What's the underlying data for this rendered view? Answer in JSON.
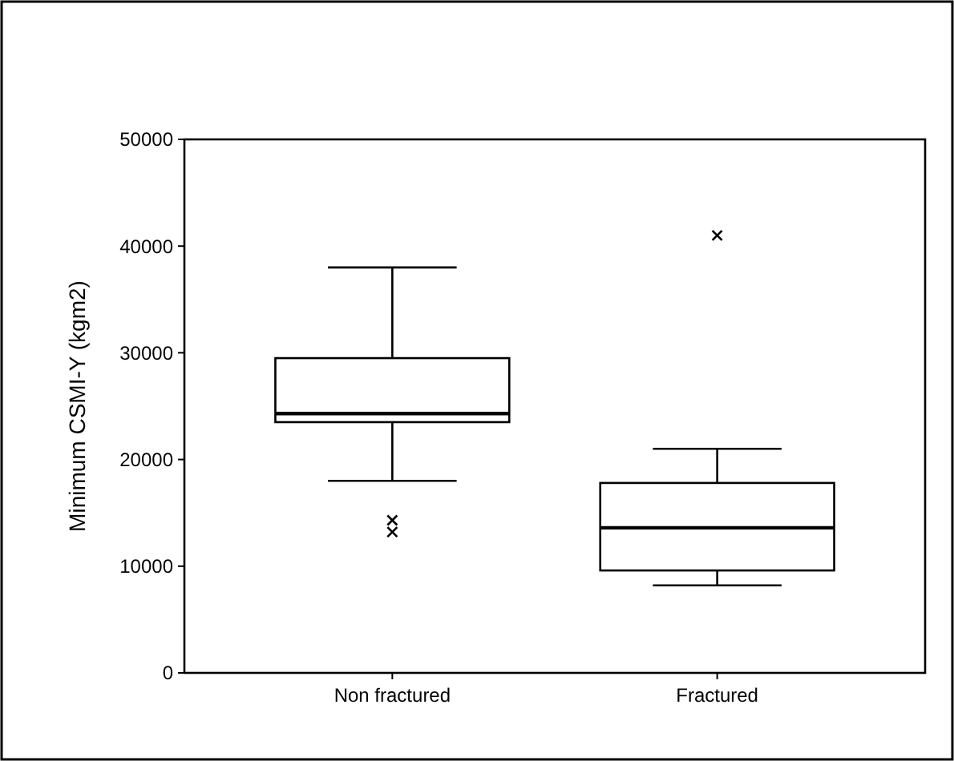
{
  "chart_data": {
    "type": "box",
    "ylabel": "Minimum CSMI-Y (kgm2)",
    "categories": [
      "Non fractured",
      "Fractured"
    ],
    "ylim": [
      0,
      50000
    ],
    "yticks": [
      0,
      10000,
      20000,
      30000,
      40000,
      50000
    ],
    "marker": "cross",
    "grid": false,
    "boxes": [
      {
        "low": 18000,
        "q1": 23500,
        "median": 24300,
        "q3": 29500,
        "high": 38000,
        "outliers": [
          14300,
          13200
        ]
      },
      {
        "low": 8200,
        "q1": 9600,
        "median": 13600,
        "q3": 17800,
        "high": 21000,
        "outliers": [
          41000
        ]
      }
    ]
  }
}
